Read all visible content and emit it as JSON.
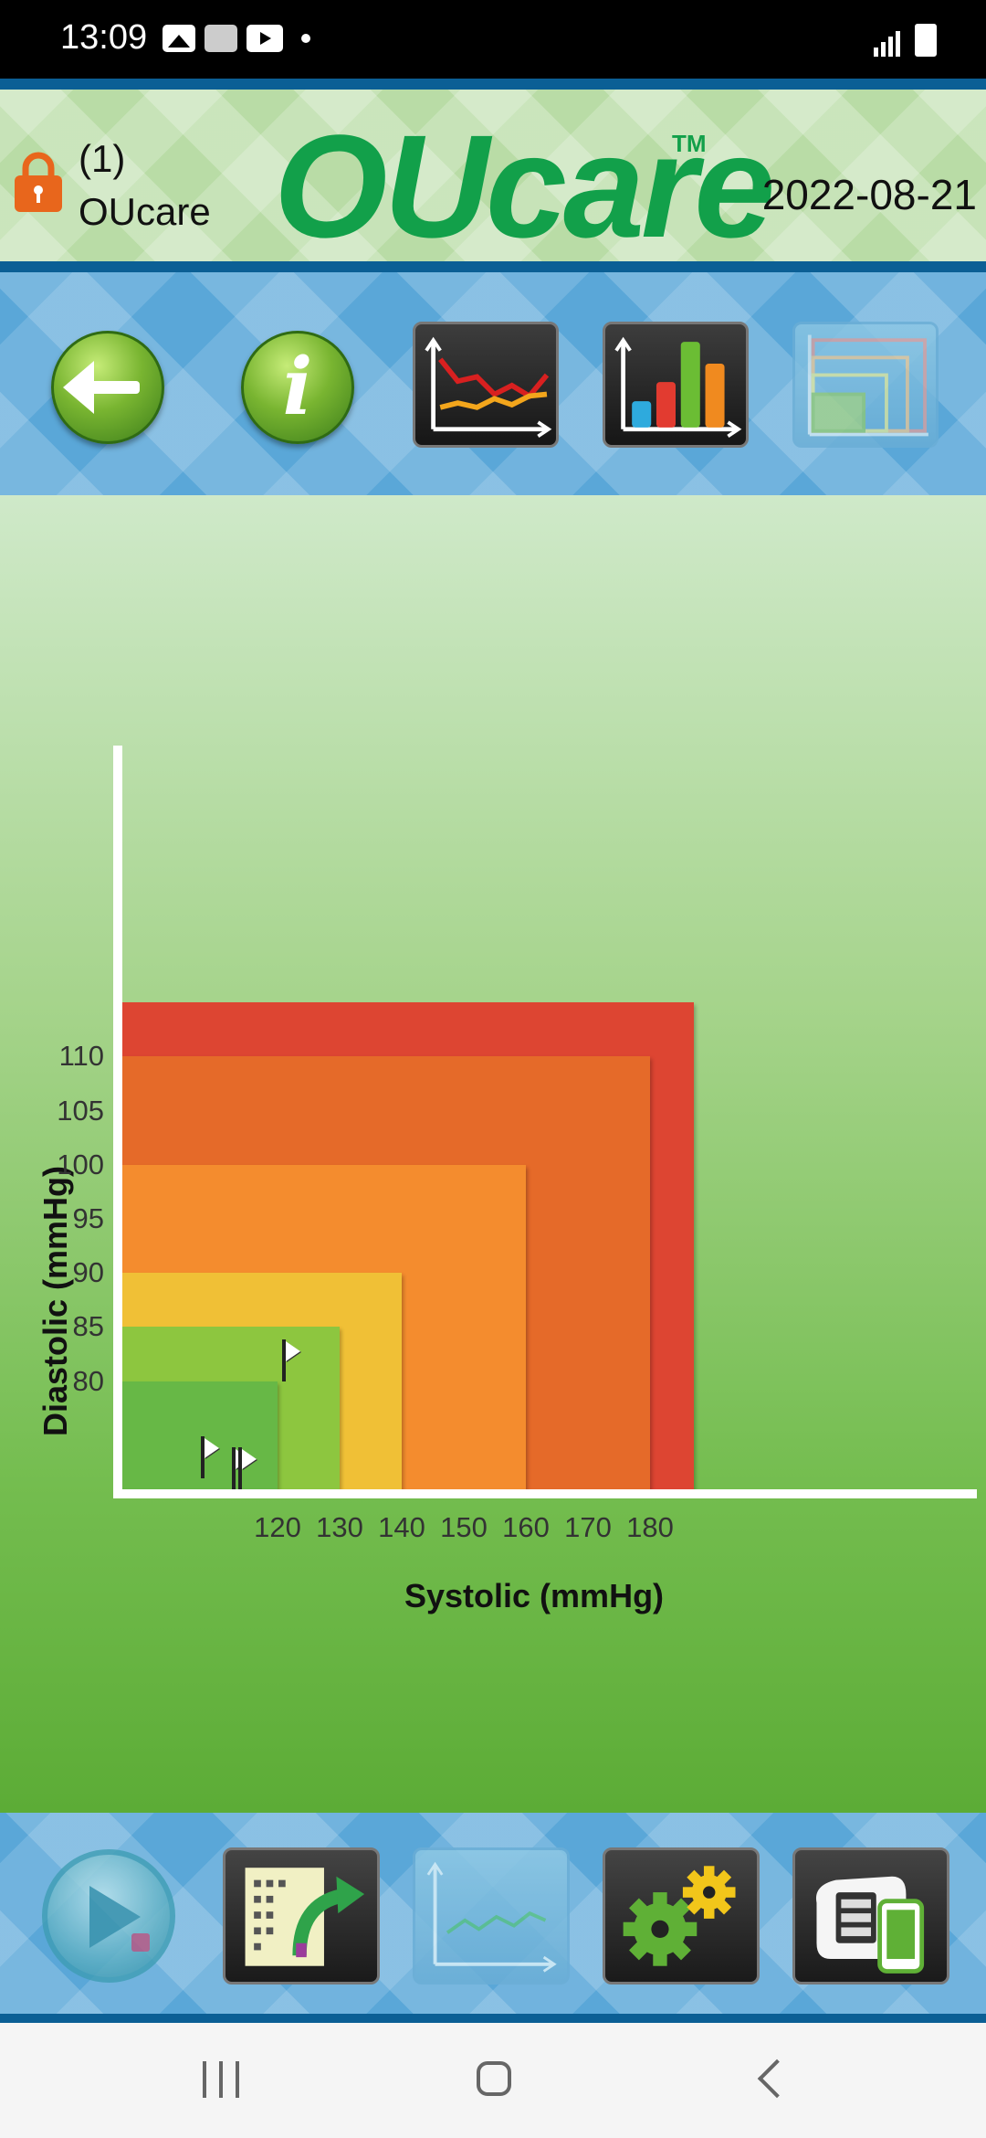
{
  "status_bar": {
    "time": "13:09"
  },
  "header": {
    "user_index": "(1)",
    "user_name": "OUcare",
    "logo": "OUcare",
    "logo_tm": "TM",
    "date": "2022-08-21"
  },
  "toolbar": {
    "icons": [
      "back-arrow-icon",
      "info-icon",
      "trend-chart-icon",
      "bar-chart-icon",
      "zone-chart-icon"
    ]
  },
  "chart_data": {
    "type": "scatter",
    "title": "",
    "xlabel": "Systolic (mmHg)",
    "ylabel": "Diastolic (mmHg)",
    "x_ticks": [
      "120",
      "130",
      "140",
      "150",
      "160",
      "170",
      "180"
    ],
    "y_ticks": [
      "110",
      "105",
      "100",
      "95",
      "90",
      "85",
      "80"
    ],
    "xlim": [
      95,
      187
    ],
    "ylim": [
      70,
      115
    ],
    "zones": [
      {
        "max_systolic": 187,
        "max_diastolic": 115,
        "color": "#dd4532"
      },
      {
        "max_systolic": 180,
        "max_diastolic": 110,
        "color": "#e56a29"
      },
      {
        "max_systolic": 160,
        "max_diastolic": 100,
        "color": "#f48c2e"
      },
      {
        "max_systolic": 140,
        "max_diastolic": 90,
        "color": "#f0c036"
      },
      {
        "max_systolic": 130,
        "max_diastolic": 85,
        "color": "#8dc63f"
      },
      {
        "max_systolic": 120,
        "max_diastolic": 80,
        "color": "#67b846"
      }
    ],
    "points": [
      {
        "systolic": 121,
        "diastolic": 80
      },
      {
        "systolic": 108,
        "diastolic": 71
      },
      {
        "systolic": 113,
        "diastolic": 70
      },
      {
        "systolic": 114,
        "diastolic": 70
      }
    ]
  },
  "bottom_bar": {
    "icons": [
      "play-icon",
      "export-icon",
      "graph-icon",
      "settings-icon",
      "device-sync-icon"
    ]
  }
}
